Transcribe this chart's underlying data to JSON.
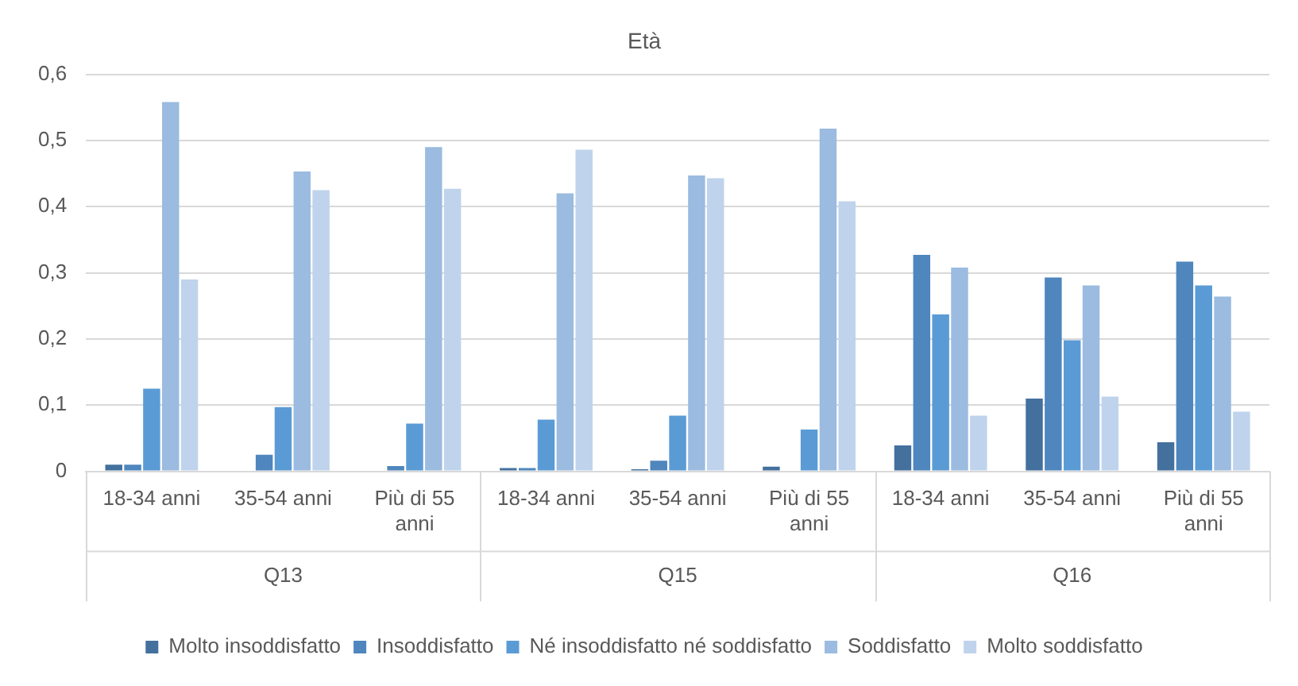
{
  "chart_data": {
    "type": "bar",
    "title": "Età",
    "categories": [
      "18-34 anni",
      "35-54 anni",
      "Più di 55 anni",
      "18-34 anni",
      "35-54 anni",
      "Più di 55 anni",
      "18-34 anni",
      "35-54 anni",
      "Più di 55 anni"
    ],
    "annotations": [
      "Q13",
      "Q15",
      "Q16"
    ],
    "series": [
      {
        "name": "Molto insoddisfatto",
        "color": "#44709d",
        "values": [
          0.01,
          0,
          0,
          0.005,
          0.003,
          0.007,
          0.039,
          0.11,
          0.044
        ]
      },
      {
        "name": "Insoddisfatto",
        "color": "#4f86bd",
        "values": [
          0.01,
          0.025,
          0.008,
          0.005,
          0.016,
          0,
          0.327,
          0.293,
          0.317
        ]
      },
      {
        "name": "Né insoddisfatto né soddisfatto",
        "color": "#5b9bd5",
        "values": [
          0.125,
          0.097,
          0.072,
          0.078,
          0.084,
          0.063,
          0.237,
          0.198,
          0.281
        ]
      },
      {
        "name": "Soddisfatto",
        "color": "#9bbbe0",
        "values": [
          0.558,
          0.453,
          0.49,
          0.42,
          0.447,
          0.518,
          0.308,
          0.281,
          0.264
        ]
      },
      {
        "name": "Molto soddisfatto",
        "color": "#bfd3ec",
        "values": [
          0.29,
          0.425,
          0.427,
          0.486,
          0.443,
          0.408,
          0.084,
          0.113,
          0.09
        ]
      }
    ],
    "ylim": [
      0,
      0.6
    ],
    "yticks": [
      0,
      {
        "value": 0.1,
        "label": "0,1"
      },
      {
        "value": 0.2,
        "label": "0,2"
      },
      {
        "value": 0.3,
        "label": "0,3"
      },
      {
        "value": 0.4,
        "label": "0,4"
      },
      {
        "value": 0.5,
        "label": "0,5"
      },
      {
        "value": 0.6,
        "label": "0,6"
      }
    ],
    "grid": "y",
    "legend": "bottom"
  }
}
